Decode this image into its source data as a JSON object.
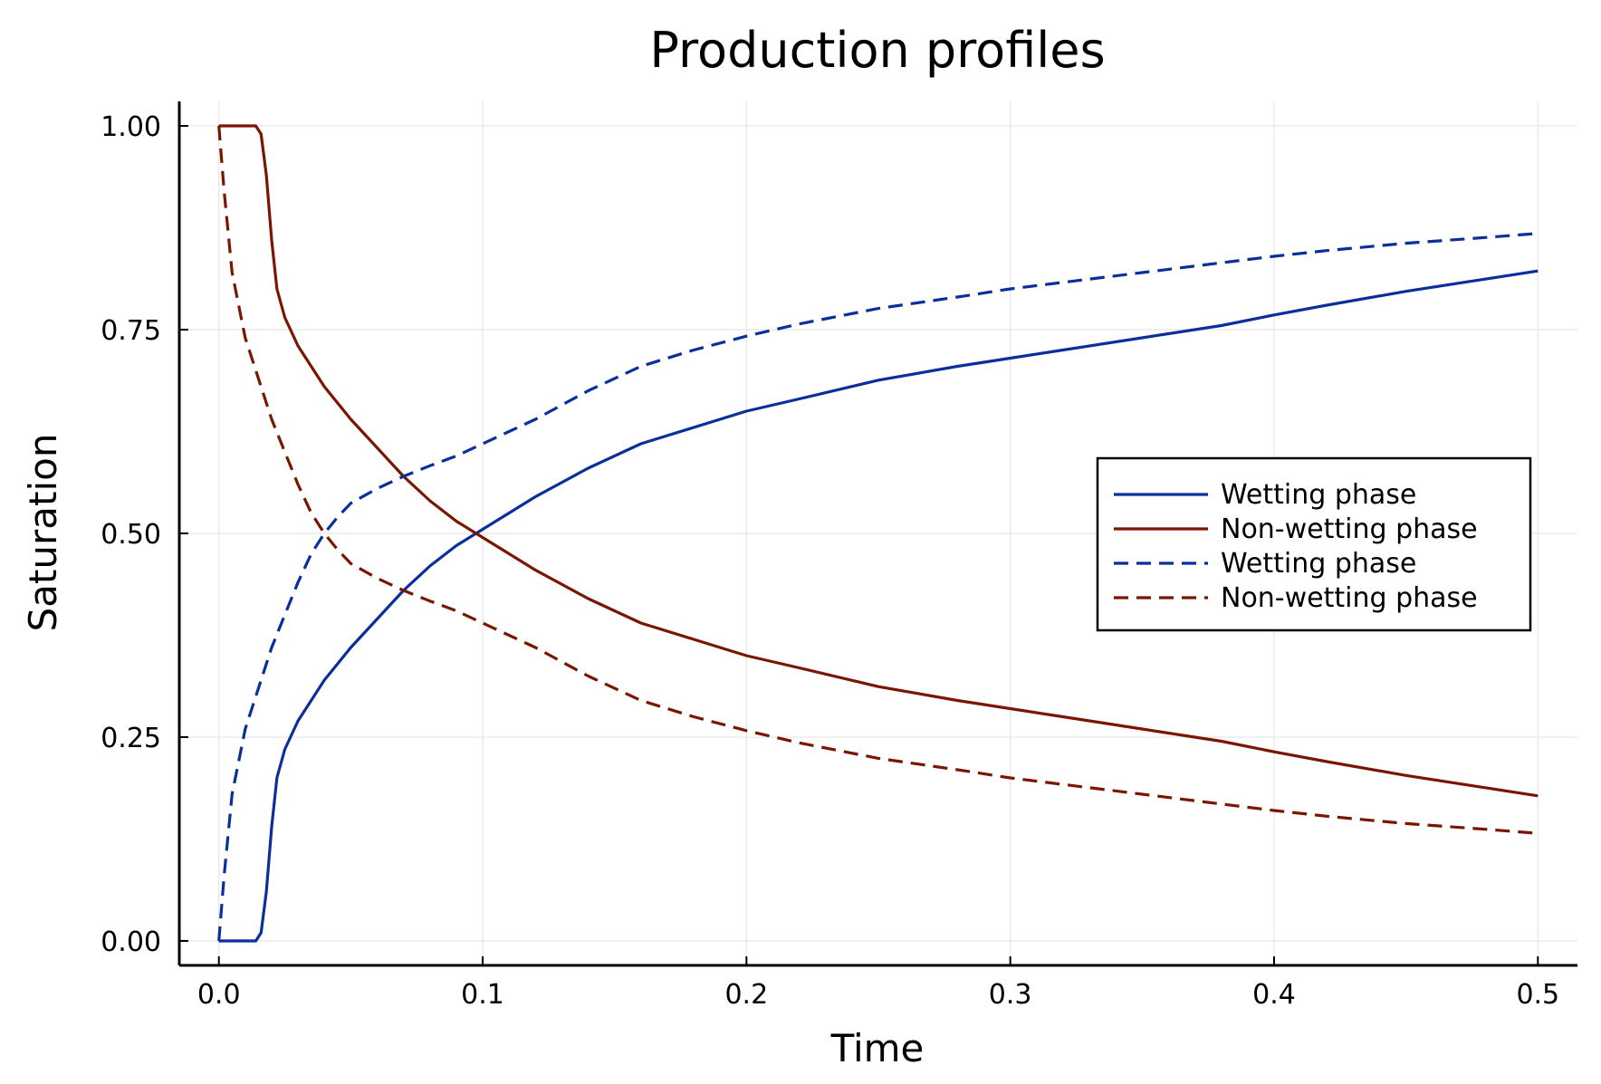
{
  "chart_data": {
    "type": "line",
    "title": "Production profiles",
    "xlabel": "Time",
    "ylabel": "Saturation",
    "xlim": [
      -0.015,
      0.515
    ],
    "ylim": [
      -0.03,
      1.03
    ],
    "xticks": [
      0.0,
      0.1,
      0.2,
      0.3,
      0.4,
      0.5
    ],
    "xtick_labels": [
      "0.0",
      "0.1",
      "0.2",
      "0.3",
      "0.4",
      "0.5"
    ],
    "yticks": [
      0.0,
      0.25,
      0.5,
      0.75,
      1.0
    ],
    "ytick_labels": [
      "0.00",
      "0.25",
      "0.50",
      "0.75",
      "1.00"
    ],
    "grid": true,
    "legend_position": "right-center",
    "series": [
      {
        "name": "Wetting phase",
        "color": "#0a2f9c",
        "style": "solid",
        "x": [
          0.0,
          0.014,
          0.016,
          0.018,
          0.02,
          0.022,
          0.025,
          0.03,
          0.04,
          0.05,
          0.06,
          0.07,
          0.08,
          0.09,
          0.1,
          0.12,
          0.14,
          0.16,
          0.18,
          0.2,
          0.22,
          0.25,
          0.28,
          0.3,
          0.32,
          0.35,
          0.38,
          0.4,
          0.42,
          0.45,
          0.48,
          0.5
        ],
        "y": [
          0.0,
          0.0,
          0.01,
          0.06,
          0.14,
          0.2,
          0.235,
          0.27,
          0.32,
          0.36,
          0.395,
          0.43,
          0.46,
          0.485,
          0.505,
          0.545,
          0.58,
          0.61,
          0.63,
          0.65,
          0.665,
          0.688,
          0.705,
          0.715,
          0.725,
          0.74,
          0.755,
          0.768,
          0.78,
          0.797,
          0.812,
          0.822
        ]
      },
      {
        "name": "Non-wetting phase",
        "color": "#7a1600",
        "style": "solid",
        "x": [
          0.0,
          0.014,
          0.016,
          0.018,
          0.02,
          0.022,
          0.025,
          0.03,
          0.04,
          0.05,
          0.06,
          0.07,
          0.08,
          0.09,
          0.1,
          0.12,
          0.14,
          0.16,
          0.18,
          0.2,
          0.22,
          0.25,
          0.28,
          0.3,
          0.32,
          0.35,
          0.38,
          0.4,
          0.42,
          0.45,
          0.48,
          0.5
        ],
        "y": [
          1.0,
          1.0,
          0.99,
          0.94,
          0.86,
          0.8,
          0.765,
          0.73,
          0.68,
          0.64,
          0.605,
          0.57,
          0.54,
          0.515,
          0.495,
          0.455,
          0.42,
          0.39,
          0.37,
          0.35,
          0.335,
          0.312,
          0.295,
          0.285,
          0.275,
          0.26,
          0.245,
          0.232,
          0.22,
          0.203,
          0.188,
          0.178
        ]
      },
      {
        "name": "Wetting phase",
        "color": "#0a2f9c",
        "style": "dashed",
        "x": [
          0.0,
          0.002,
          0.005,
          0.01,
          0.015,
          0.02,
          0.025,
          0.03,
          0.035,
          0.04,
          0.045,
          0.05,
          0.06,
          0.07,
          0.08,
          0.09,
          0.1,
          0.12,
          0.14,
          0.16,
          0.18,
          0.2,
          0.22,
          0.25,
          0.28,
          0.3,
          0.32,
          0.35,
          0.38,
          0.4,
          0.42,
          0.45,
          0.48,
          0.5
        ],
        "y": [
          0.0,
          0.08,
          0.18,
          0.26,
          0.31,
          0.36,
          0.4,
          0.44,
          0.475,
          0.5,
          0.52,
          0.537,
          0.555,
          0.57,
          0.583,
          0.595,
          0.61,
          0.64,
          0.675,
          0.705,
          0.725,
          0.742,
          0.757,
          0.776,
          0.79,
          0.8,
          0.808,
          0.82,
          0.832,
          0.84,
          0.847,
          0.856,
          0.863,
          0.868
        ]
      },
      {
        "name": "Non-wetting phase",
        "color": "#7a1600",
        "style": "dashed",
        "x": [
          0.0,
          0.002,
          0.005,
          0.01,
          0.015,
          0.02,
          0.025,
          0.03,
          0.035,
          0.04,
          0.045,
          0.05,
          0.06,
          0.07,
          0.08,
          0.09,
          0.1,
          0.12,
          0.14,
          0.16,
          0.18,
          0.2,
          0.22,
          0.25,
          0.28,
          0.3,
          0.32,
          0.35,
          0.38,
          0.4,
          0.42,
          0.45,
          0.48,
          0.5
        ],
        "y": [
          1.0,
          0.92,
          0.82,
          0.74,
          0.69,
          0.64,
          0.6,
          0.56,
          0.525,
          0.5,
          0.48,
          0.463,
          0.445,
          0.43,
          0.417,
          0.405,
          0.39,
          0.36,
          0.325,
          0.295,
          0.275,
          0.258,
          0.243,
          0.224,
          0.21,
          0.2,
          0.192,
          0.18,
          0.168,
          0.16,
          0.153,
          0.144,
          0.137,
          0.132
        ]
      }
    ]
  }
}
